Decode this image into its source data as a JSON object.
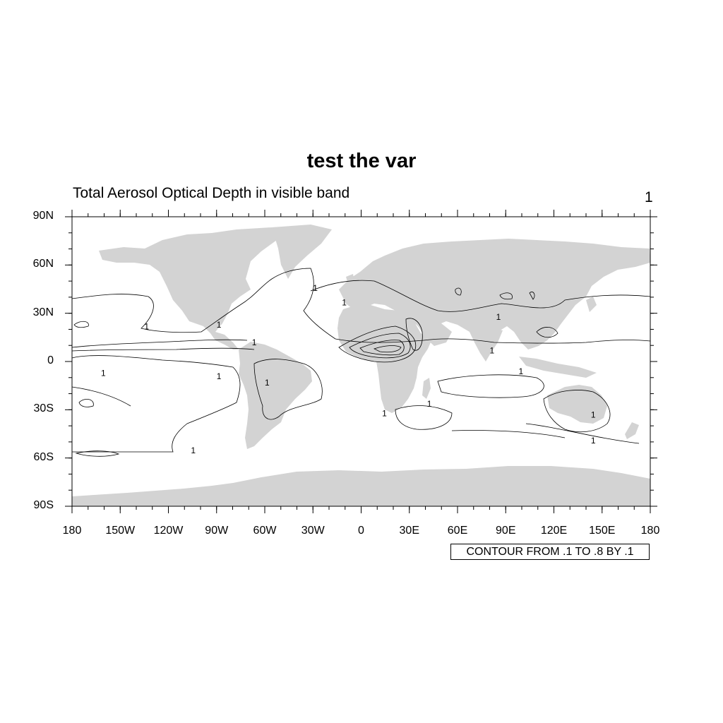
{
  "title": "test the var",
  "subtitle_left": "Total Aerosol Optical Depth in visible band",
  "subtitle_right": "1",
  "info_label": "CONTOUR FROM .1 TO .8 BY .1",
  "colors": {
    "land": "#d3d3d3",
    "contour": "#000000",
    "background": "#ffffff"
  },
  "axes": {
    "x_ticks": [
      "180",
      "150W",
      "120W",
      "90W",
      "60W",
      "30W",
      "0",
      "30E",
      "60E",
      "90E",
      "120E",
      "150E",
      "180"
    ],
    "y_ticks": [
      "90N",
      "60N",
      "30N",
      "0",
      "30S",
      "60S",
      "90S"
    ]
  },
  "contour_labels": [
    {
      "lon": -135,
      "lat": 20,
      "text": "1"
    },
    {
      "lon": -162,
      "lat": -9,
      "text": "1"
    },
    {
      "lon": -90,
      "lat": -11,
      "text": "1"
    },
    {
      "lon": -106,
      "lat": -57,
      "text": "1"
    },
    {
      "lon": -90,
      "lat": 21,
      "text": "1"
    },
    {
      "lon": -68,
      "lat": 10,
      "text": "1"
    },
    {
      "lon": -60,
      "lat": -15,
      "text": "1"
    },
    {
      "lon": -30,
      "lat": 44,
      "text": "1"
    },
    {
      "lon": -12,
      "lat": 35,
      "text": "1"
    },
    {
      "lon": 13,
      "lat": -34,
      "text": "1"
    },
    {
      "lon": 41,
      "lat": -28,
      "text": "1"
    },
    {
      "lon": 84,
      "lat": 26,
      "text": "1"
    },
    {
      "lon": 80,
      "lat": 5,
      "text": "1"
    },
    {
      "lon": 98,
      "lat": -8,
      "text": "1"
    },
    {
      "lon": 143,
      "lat": -35,
      "text": "1"
    },
    {
      "lon": 143,
      "lat": -51,
      "text": "1"
    }
  ]
}
